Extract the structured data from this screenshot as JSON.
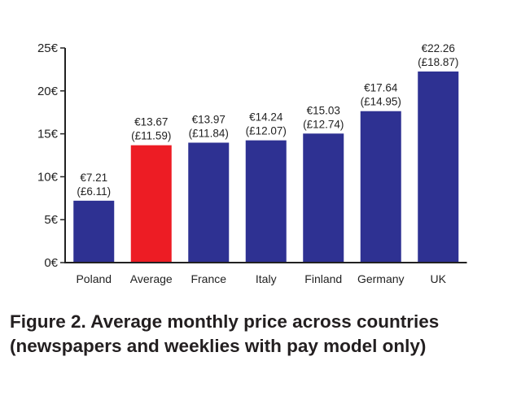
{
  "caption": "Figure 2. Average monthly price across countries (newspapers and weeklies with pay model only)",
  "chart_data": {
    "type": "bar",
    "title": "",
    "xlabel": "",
    "ylabel": "",
    "ylim": [
      0,
      25
    ],
    "yticks": [
      "0€",
      "5€",
      "10€",
      "15€",
      "20€",
      "25€"
    ],
    "grid": false,
    "categories": [
      "Poland",
      "Average",
      "France",
      "Italy",
      "Finland",
      "Germany",
      "UK"
    ],
    "values": [
      7.21,
      13.67,
      13.97,
      14.24,
      15.03,
      17.64,
      22.26
    ],
    "labels_eur": [
      "€7.21",
      "€13.67",
      "€13.97",
      "€14.24",
      "€15.03",
      "€17.64",
      "€22.26"
    ],
    "labels_gbp": [
      "(£6.11)",
      "(£11.59)",
      "(£11.84)",
      "(£12.07)",
      "(£12.74)",
      "(£14.95)",
      "(£18.87)"
    ],
    "colors": [
      "#2e3192",
      "#ed1c24",
      "#2e3192",
      "#2e3192",
      "#2e3192",
      "#2e3192",
      "#2e3192"
    ]
  }
}
